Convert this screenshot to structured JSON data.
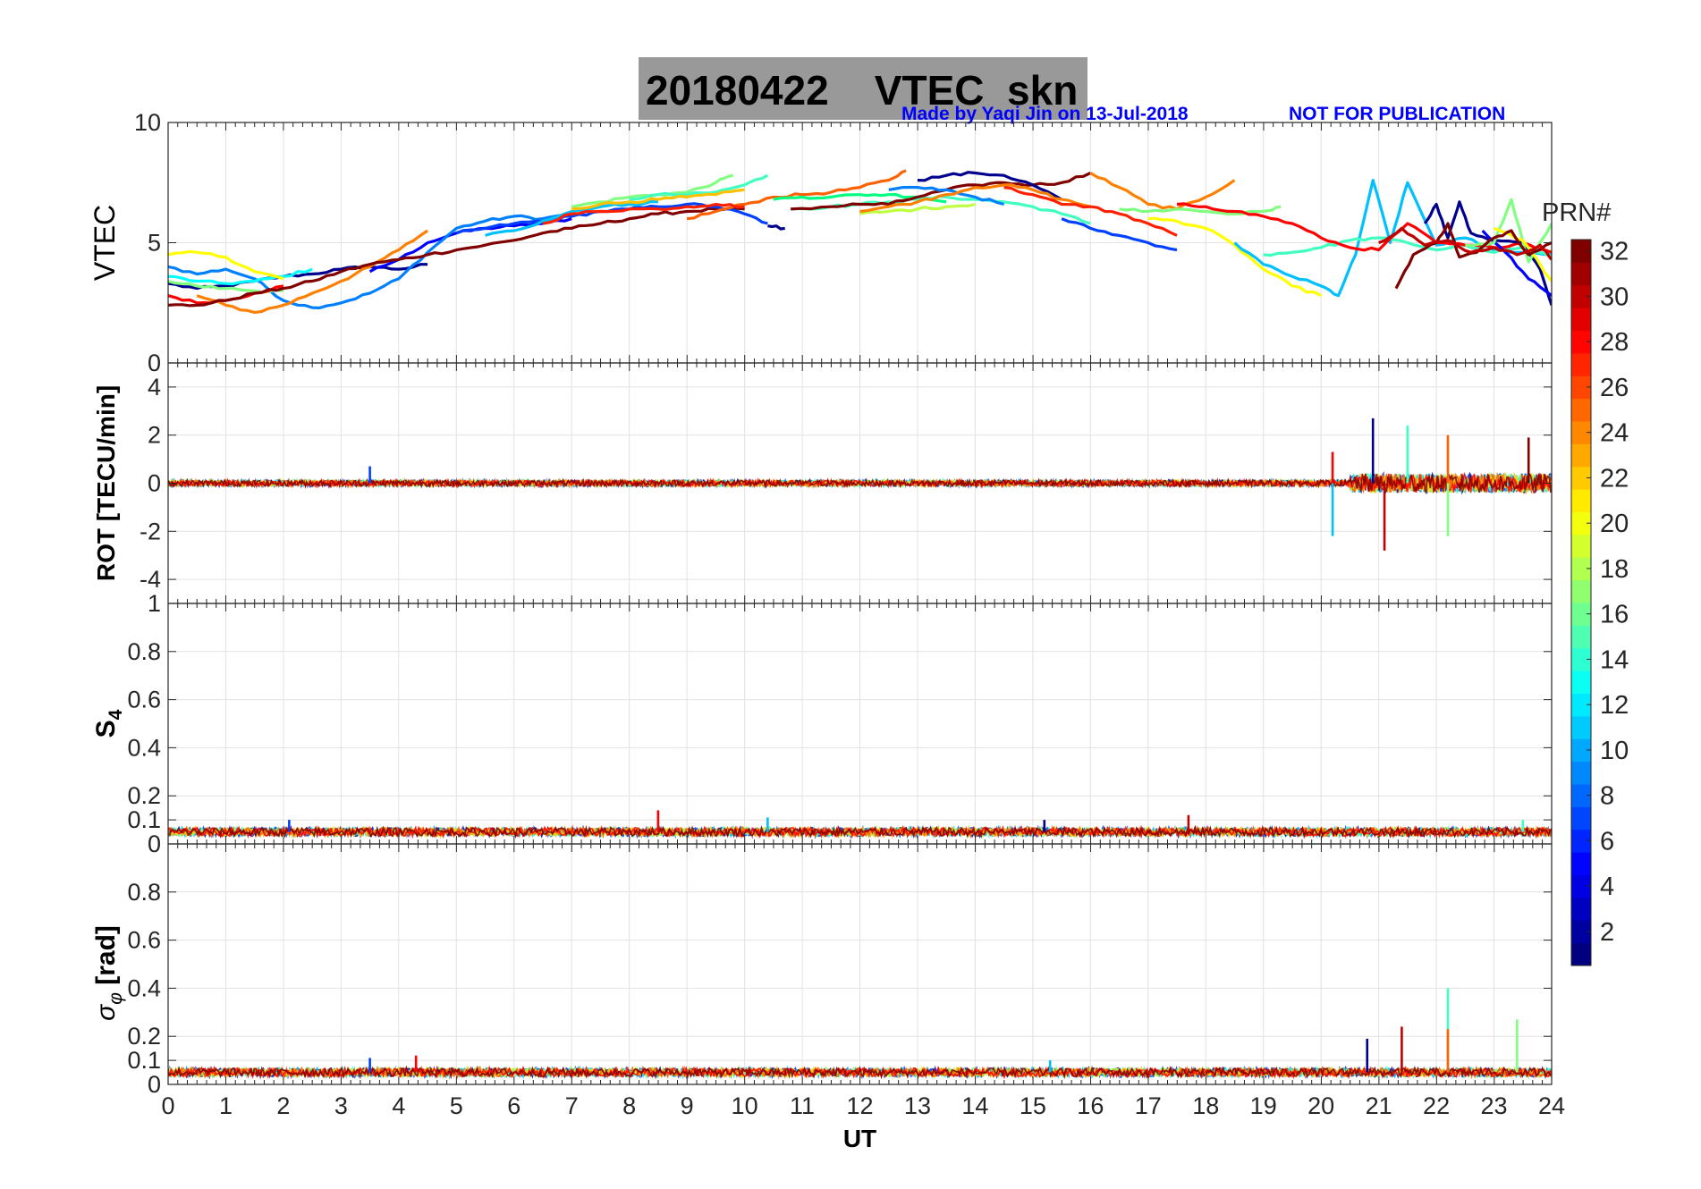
{
  "figure": {
    "title_date": "20180422",
    "title_main": "VTEC  skn",
    "credit_author": "Made by Yaqi Jin on 13-Jul-2018",
    "credit_note": "NOT FOR PUBLICATION"
  },
  "chart_data": [
    {
      "type": "line",
      "panel": "vtec",
      "ylabel": "VTEC",
      "ylim": [
        0,
        10
      ],
      "yticks": [
        0,
        5,
        10
      ],
      "xlim": [
        0,
        24
      ],
      "grid": true,
      "series": [
        {
          "color": "#00008f",
          "x": [
            0,
            0.5,
            1,
            1.5,
            2,
            2.5,
            3,
            3.5,
            4,
            4.5
          ],
          "y": [
            3.3,
            3.1,
            3.2,
            3.4,
            3.6,
            3.7,
            3.9,
            4.0,
            3.9,
            4.1
          ]
        },
        {
          "color": "#0000ff",
          "x": [
            3.5,
            4,
            4.5,
            5,
            5.5,
            6,
            6.5,
            7
          ],
          "y": [
            3.8,
            4.3,
            5.0,
            5.4,
            5.6,
            5.7,
            5.8,
            6.0
          ]
        },
        {
          "color": "#0080ff",
          "x": [
            0,
            0.5,
            1,
            1.5,
            2,
            2.5,
            3,
            3.5,
            4,
            4.5,
            5,
            5.5,
            6,
            6.5,
            7
          ],
          "y": [
            4.0,
            3.7,
            3.9,
            3.5,
            2.6,
            2.3,
            2.5,
            2.9,
            3.5,
            4.6,
            5.6,
            5.9,
            6.1,
            6.0,
            6.2
          ]
        },
        {
          "color": "#00ffff",
          "x": [
            0,
            0.5,
            1,
            1.5,
            2,
            2.5
          ],
          "y": [
            3.6,
            3.4,
            3.3,
            3.4,
            3.6,
            3.9
          ]
        },
        {
          "color": "#80ff80",
          "x": [
            0,
            0.5,
            1,
            1.5,
            2
          ],
          "y": [
            3.4,
            3.2,
            3.1,
            3.0,
            3.0
          ]
        },
        {
          "color": "#ffff00",
          "x": [
            0,
            0.5,
            1,
            1.5,
            2
          ],
          "y": [
            4.5,
            4.6,
            4.4,
            3.8,
            3.5
          ]
        },
        {
          "color": "#ff8000",
          "x": [
            0.5,
            1,
            1.5,
            2,
            2.5,
            3,
            3.5,
            4,
            4.5
          ],
          "y": [
            2.8,
            2.4,
            2.1,
            2.4,
            2.9,
            3.4,
            4.0,
            4.7,
            5.5
          ]
        },
        {
          "color": "#ff0000",
          "x": [
            0,
            0.5,
            1,
            1.5,
            2
          ],
          "y": [
            2.8,
            2.5,
            2.6,
            2.9,
            3.2
          ]
        },
        {
          "color": "#800000",
          "x": [
            0,
            0.5,
            1,
            1.5,
            2,
            2.5,
            3,
            3.5,
            4,
            4.5,
            5,
            5.5,
            6,
            6.5,
            7,
            7.5,
            8,
            8.5,
            9,
            9.5,
            10
          ],
          "y": [
            2.4,
            2.4,
            2.6,
            2.9,
            3.1,
            3.4,
            3.8,
            4.1,
            4.3,
            4.5,
            4.7,
            4.9,
            5.1,
            5.4,
            5.6,
            5.8,
            6.0,
            6.2,
            6.3,
            6.4,
            6.4
          ]
        },
        {
          "color": "#0040ff",
          "x": [
            5,
            5.5,
            6,
            6.5,
            7,
            7.5,
            8,
            8.5,
            9,
            9.5,
            10,
            10.4
          ],
          "y": [
            5.4,
            5.6,
            5.8,
            5.9,
            6.1,
            6.3,
            6.4,
            6.5,
            6.6,
            6.5,
            6.2,
            5.8
          ]
        },
        {
          "color": "#00c0ff",
          "x": [
            5.5,
            6,
            6.5,
            7,
            7.5,
            8,
            8.5
          ],
          "y": [
            5.3,
            5.5,
            5.9,
            6.3,
            6.5,
            6.6,
            6.7
          ]
        },
        {
          "color": "#80ff80",
          "x": [
            7,
            7.5,
            8,
            8.5,
            9,
            9.5,
            9.8
          ],
          "y": [
            6.5,
            6.7,
            6.9,
            7.0,
            7.1,
            7.5,
            7.8
          ]
        },
        {
          "color": "#40ffc0",
          "x": [
            8,
            8.5,
            9,
            9.5,
            10,
            10.4
          ],
          "y": [
            6.8,
            7.0,
            7.0,
            7.1,
            7.4,
            7.8
          ]
        },
        {
          "color": "#ffc000",
          "x": [
            7,
            7.5,
            8,
            8.5,
            9,
            9.5,
            10
          ],
          "y": [
            6.4,
            6.6,
            6.7,
            6.8,
            6.9,
            7.0,
            7.2
          ]
        },
        {
          "color": "#ff6000",
          "x": [
            9,
            9.5,
            10,
            10.5,
            11,
            11.5,
            12,
            12.5,
            12.8
          ],
          "y": [
            6.0,
            6.3,
            6.6,
            6.9,
            7.0,
            7.1,
            7.3,
            7.6,
            8.0
          ]
        },
        {
          "color": "#ff2000",
          "x": [
            6.5,
            7,
            7.5,
            8,
            8.5,
            9,
            9.5,
            10
          ],
          "y": [
            5.8,
            6.2,
            6.3,
            6.4,
            6.4,
            6.5,
            6.6,
            6.5
          ]
        },
        {
          "color": "#00008f",
          "x": [
            10.4,
            10.7
          ],
          "y": [
            5.7,
            5.6
          ]
        },
        {
          "color": "#00ff80",
          "x": [
            10.5,
            11,
            11.5,
            12,
            12.5,
            13,
            13.5
          ],
          "y": [
            6.8,
            6.9,
            6.9,
            7.0,
            7.0,
            6.9,
            6.7
          ]
        },
        {
          "color": "#40ffc0",
          "x": [
            10.8,
            11.5,
            12,
            12.5,
            13,
            13.5,
            14,
            14.5,
            15,
            15.5,
            16
          ],
          "y": [
            6.4,
            6.5,
            6.6,
            6.7,
            6.8,
            6.9,
            6.8,
            6.7,
            6.5,
            6.2,
            5.8
          ]
        },
        {
          "color": "#800000",
          "x": [
            10.8,
            11.5,
            12,
            12.5,
            13,
            13.5,
            14,
            14.5,
            15,
            15.5,
            16
          ],
          "y": [
            6.4,
            6.5,
            6.6,
            6.6,
            6.9,
            7.2,
            7.4,
            7.5,
            7.4,
            7.5,
            7.9
          ]
        },
        {
          "color": "#00008f",
          "x": [
            13,
            13.5,
            14,
            14.5,
            15,
            15.5
          ],
          "y": [
            7.6,
            7.8,
            7.9,
            7.8,
            7.4,
            6.8
          ]
        },
        {
          "color": "#0080ff",
          "x": [
            12.5,
            13,
            13.5,
            14,
            14.5
          ],
          "y": [
            7.2,
            7.3,
            7.2,
            6.9,
            6.6
          ]
        },
        {
          "color": "#c0ff40",
          "x": [
            12,
            12.5,
            13,
            13.5,
            14
          ],
          "y": [
            6.2,
            6.3,
            6.4,
            6.5,
            6.6
          ]
        },
        {
          "color": "#ff8000",
          "x": [
            12,
            12.5,
            13,
            13.5,
            14,
            14.5,
            15,
            15.5,
            16
          ],
          "y": [
            6.3,
            6.5,
            6.7,
            7.0,
            7.3,
            7.4,
            7.2,
            6.8,
            6.5
          ]
        },
        {
          "color": "#0040ff",
          "x": [
            15.5,
            16,
            16.5,
            17,
            17.5
          ],
          "y": [
            6.0,
            5.6,
            5.3,
            5.0,
            4.7
          ]
        },
        {
          "color": "#ff2000",
          "x": [
            14.5,
            15,
            15.5,
            16,
            16.5,
            17,
            17.5
          ],
          "y": [
            7.3,
            7.0,
            6.6,
            6.5,
            6.2,
            5.8,
            5.3
          ]
        },
        {
          "color": "#ff8000",
          "x": [
            16,
            16.5,
            17,
            17.5,
            18,
            18.5
          ],
          "y": [
            7.9,
            7.3,
            6.6,
            6.4,
            6.9,
            7.6
          ]
        },
        {
          "color": "#80ff80",
          "x": [
            16.5,
            17,
            17.5,
            18,
            18.5,
            19,
            19.3
          ],
          "y": [
            6.4,
            6.3,
            6.4,
            6.3,
            6.2,
            6.3,
            6.5
          ]
        },
        {
          "color": "#ffff00",
          "x": [
            17,
            17.5,
            18,
            18.5,
            19,
            19.5,
            20
          ],
          "y": [
            6.0,
            5.9,
            5.6,
            4.9,
            3.9,
            3.2,
            2.8
          ]
        },
        {
          "color": "#00c0ff",
          "x": [
            18.5,
            19,
            19.5,
            20,
            20.3,
            20.6,
            20.9,
            21.2,
            21.5,
            22,
            22.5,
            23,
            23.5,
            24
          ],
          "y": [
            5.0,
            4.1,
            3.6,
            3.2,
            2.8,
            4.5,
            7.6,
            5.0,
            7.5,
            4.9,
            5.2,
            4.7,
            4.6,
            4.5
          ]
        },
        {
          "color": "#40ffc0",
          "x": [
            19,
            19.5,
            20,
            20.5,
            21,
            21.5,
            22,
            22.5,
            23,
            23.5,
            24
          ],
          "y": [
            4.5,
            4.6,
            4.8,
            5.1,
            5.2,
            5.0,
            4.7,
            4.9,
            4.6,
            4.8,
            4.4
          ]
        },
        {
          "color": "#ff0000",
          "x": [
            17.5,
            18,
            18.5,
            19,
            19.5,
            20,
            20.5,
            21,
            21.5,
            22,
            22.5,
            23,
            23.5,
            24
          ],
          "y": [
            6.6,
            6.5,
            6.3,
            6.1,
            5.8,
            5.2,
            4.8,
            4.7,
            5.8,
            5.0,
            4.9,
            4.8,
            5.0,
            4.6
          ]
        },
        {
          "color": "#00008f",
          "x": [
            21.8,
            22.0,
            22.2,
            22.4,
            22.6,
            23,
            23.5,
            23.8,
            24
          ],
          "y": [
            5.8,
            6.6,
            5.2,
            6.7,
            5.4,
            5.1,
            5.0,
            3.9,
            2.4
          ]
        },
        {
          "color": "#0000ff",
          "x": [
            22.8,
            23.2,
            23.6,
            24
          ],
          "y": [
            5.5,
            4.6,
            3.5,
            2.8
          ]
        },
        {
          "color": "#80ff80",
          "x": [
            22.5,
            23,
            23.3,
            23.6,
            24
          ],
          "y": [
            4.9,
            5.0,
            6.8,
            4.2,
            5.8
          ]
        },
        {
          "color": "#ffff00",
          "x": [
            23,
            23.5,
            24
          ],
          "y": [
            5.6,
            5.1,
            3.4
          ]
        },
        {
          "color": "#800000",
          "x": [
            21.3,
            21.6,
            22,
            22.2,
            22.4,
            22.7,
            23,
            23.3,
            23.6,
            24
          ],
          "y": [
            3.1,
            4.5,
            5.0,
            5.8,
            4.4,
            4.6,
            5.2,
            5.5,
            4.5,
            5.0
          ]
        },
        {
          "color": "#c00000",
          "x": [
            21,
            21.4,
            21.8,
            22.2,
            22.6,
            23,
            23.4,
            23.8,
            24
          ],
          "y": [
            5.0,
            5.6,
            4.9,
            5.1,
            4.6,
            4.8,
            4.5,
            4.9,
            4.3
          ]
        }
      ]
    },
    {
      "type": "line",
      "panel": "rot",
      "ylabel": "ROT [TECU/min]",
      "ylim": [
        -5,
        5
      ],
      "yticks": [
        -4,
        -2,
        0,
        2,
        4
      ],
      "xlim": [
        0,
        24
      ],
      "grid": true,
      "noise_band": [
        {
          "x_from": 0,
          "x_to": 20.5,
          "amplitude": 0.25
        },
        {
          "x_from": 20.5,
          "x_to": 24,
          "amplitude": 0.8
        }
      ],
      "spikes": [
        {
          "x": 3.5,
          "y": 0.7
        },
        {
          "x": 20.2,
          "y": 1.3
        },
        {
          "x": 20.2,
          "y": -2.2
        },
        {
          "x": 20.9,
          "y": 2.7
        },
        {
          "x": 21.1,
          "y": -2.8
        },
        {
          "x": 21.5,
          "y": 2.4
        },
        {
          "x": 22.2,
          "y": 2.0
        },
        {
          "x": 22.2,
          "y": -2.2
        },
        {
          "x": 23.6,
          "y": 1.9
        }
      ]
    },
    {
      "type": "line",
      "panel": "s4",
      "ylabel": "S4",
      "ylim": [
        0,
        1
      ],
      "yticks": [
        0,
        0.1,
        0.2,
        0.4,
        0.6,
        0.8,
        1
      ],
      "xlim": [
        0,
        24
      ],
      "grid": true,
      "baseline": 0.05,
      "spikes": [
        {
          "x": 2.1,
          "y": 0.1
        },
        {
          "x": 8.5,
          "y": 0.14
        },
        {
          "x": 10.4,
          "y": 0.11
        },
        {
          "x": 15.2,
          "y": 0.1
        },
        {
          "x": 17.7,
          "y": 0.12
        },
        {
          "x": 23.5,
          "y": 0.1
        }
      ]
    },
    {
      "type": "line",
      "panel": "sigma_phi",
      "ylabel": "σφ [rad]",
      "ylim": [
        0,
        1
      ],
      "yticks": [
        0,
        0.1,
        0.2,
        0.4,
        0.6,
        0.8
      ],
      "xlim": [
        0,
        24
      ],
      "xlabel": "UT",
      "xticks": [
        0,
        1,
        2,
        3,
        4,
        5,
        6,
        7,
        8,
        9,
        10,
        11,
        12,
        13,
        14,
        15,
        16,
        17,
        18,
        19,
        20,
        21,
        22,
        23,
        24
      ],
      "grid": true,
      "baseline": 0.05,
      "spikes": [
        {
          "x": 3.5,
          "y": 0.11
        },
        {
          "x": 4.3,
          "y": 0.12
        },
        {
          "x": 15.3,
          "y": 0.1
        },
        {
          "x": 20.8,
          "y": 0.19
        },
        {
          "x": 21.4,
          "y": 0.24
        },
        {
          "x": 22.2,
          "y": 0.4
        },
        {
          "x": 22.2,
          "y": 0.23
        },
        {
          "x": 23.4,
          "y": 0.27
        }
      ]
    }
  ],
  "colorbar": {
    "label": "PRN#",
    "range": [
      1,
      32
    ],
    "ticks": [
      "2",
      "4",
      "6",
      "8",
      "10",
      "12",
      "14",
      "16",
      "18",
      "20",
      "22",
      "24",
      "26",
      "28",
      "30",
      "32"
    ],
    "colormap": "jet"
  }
}
